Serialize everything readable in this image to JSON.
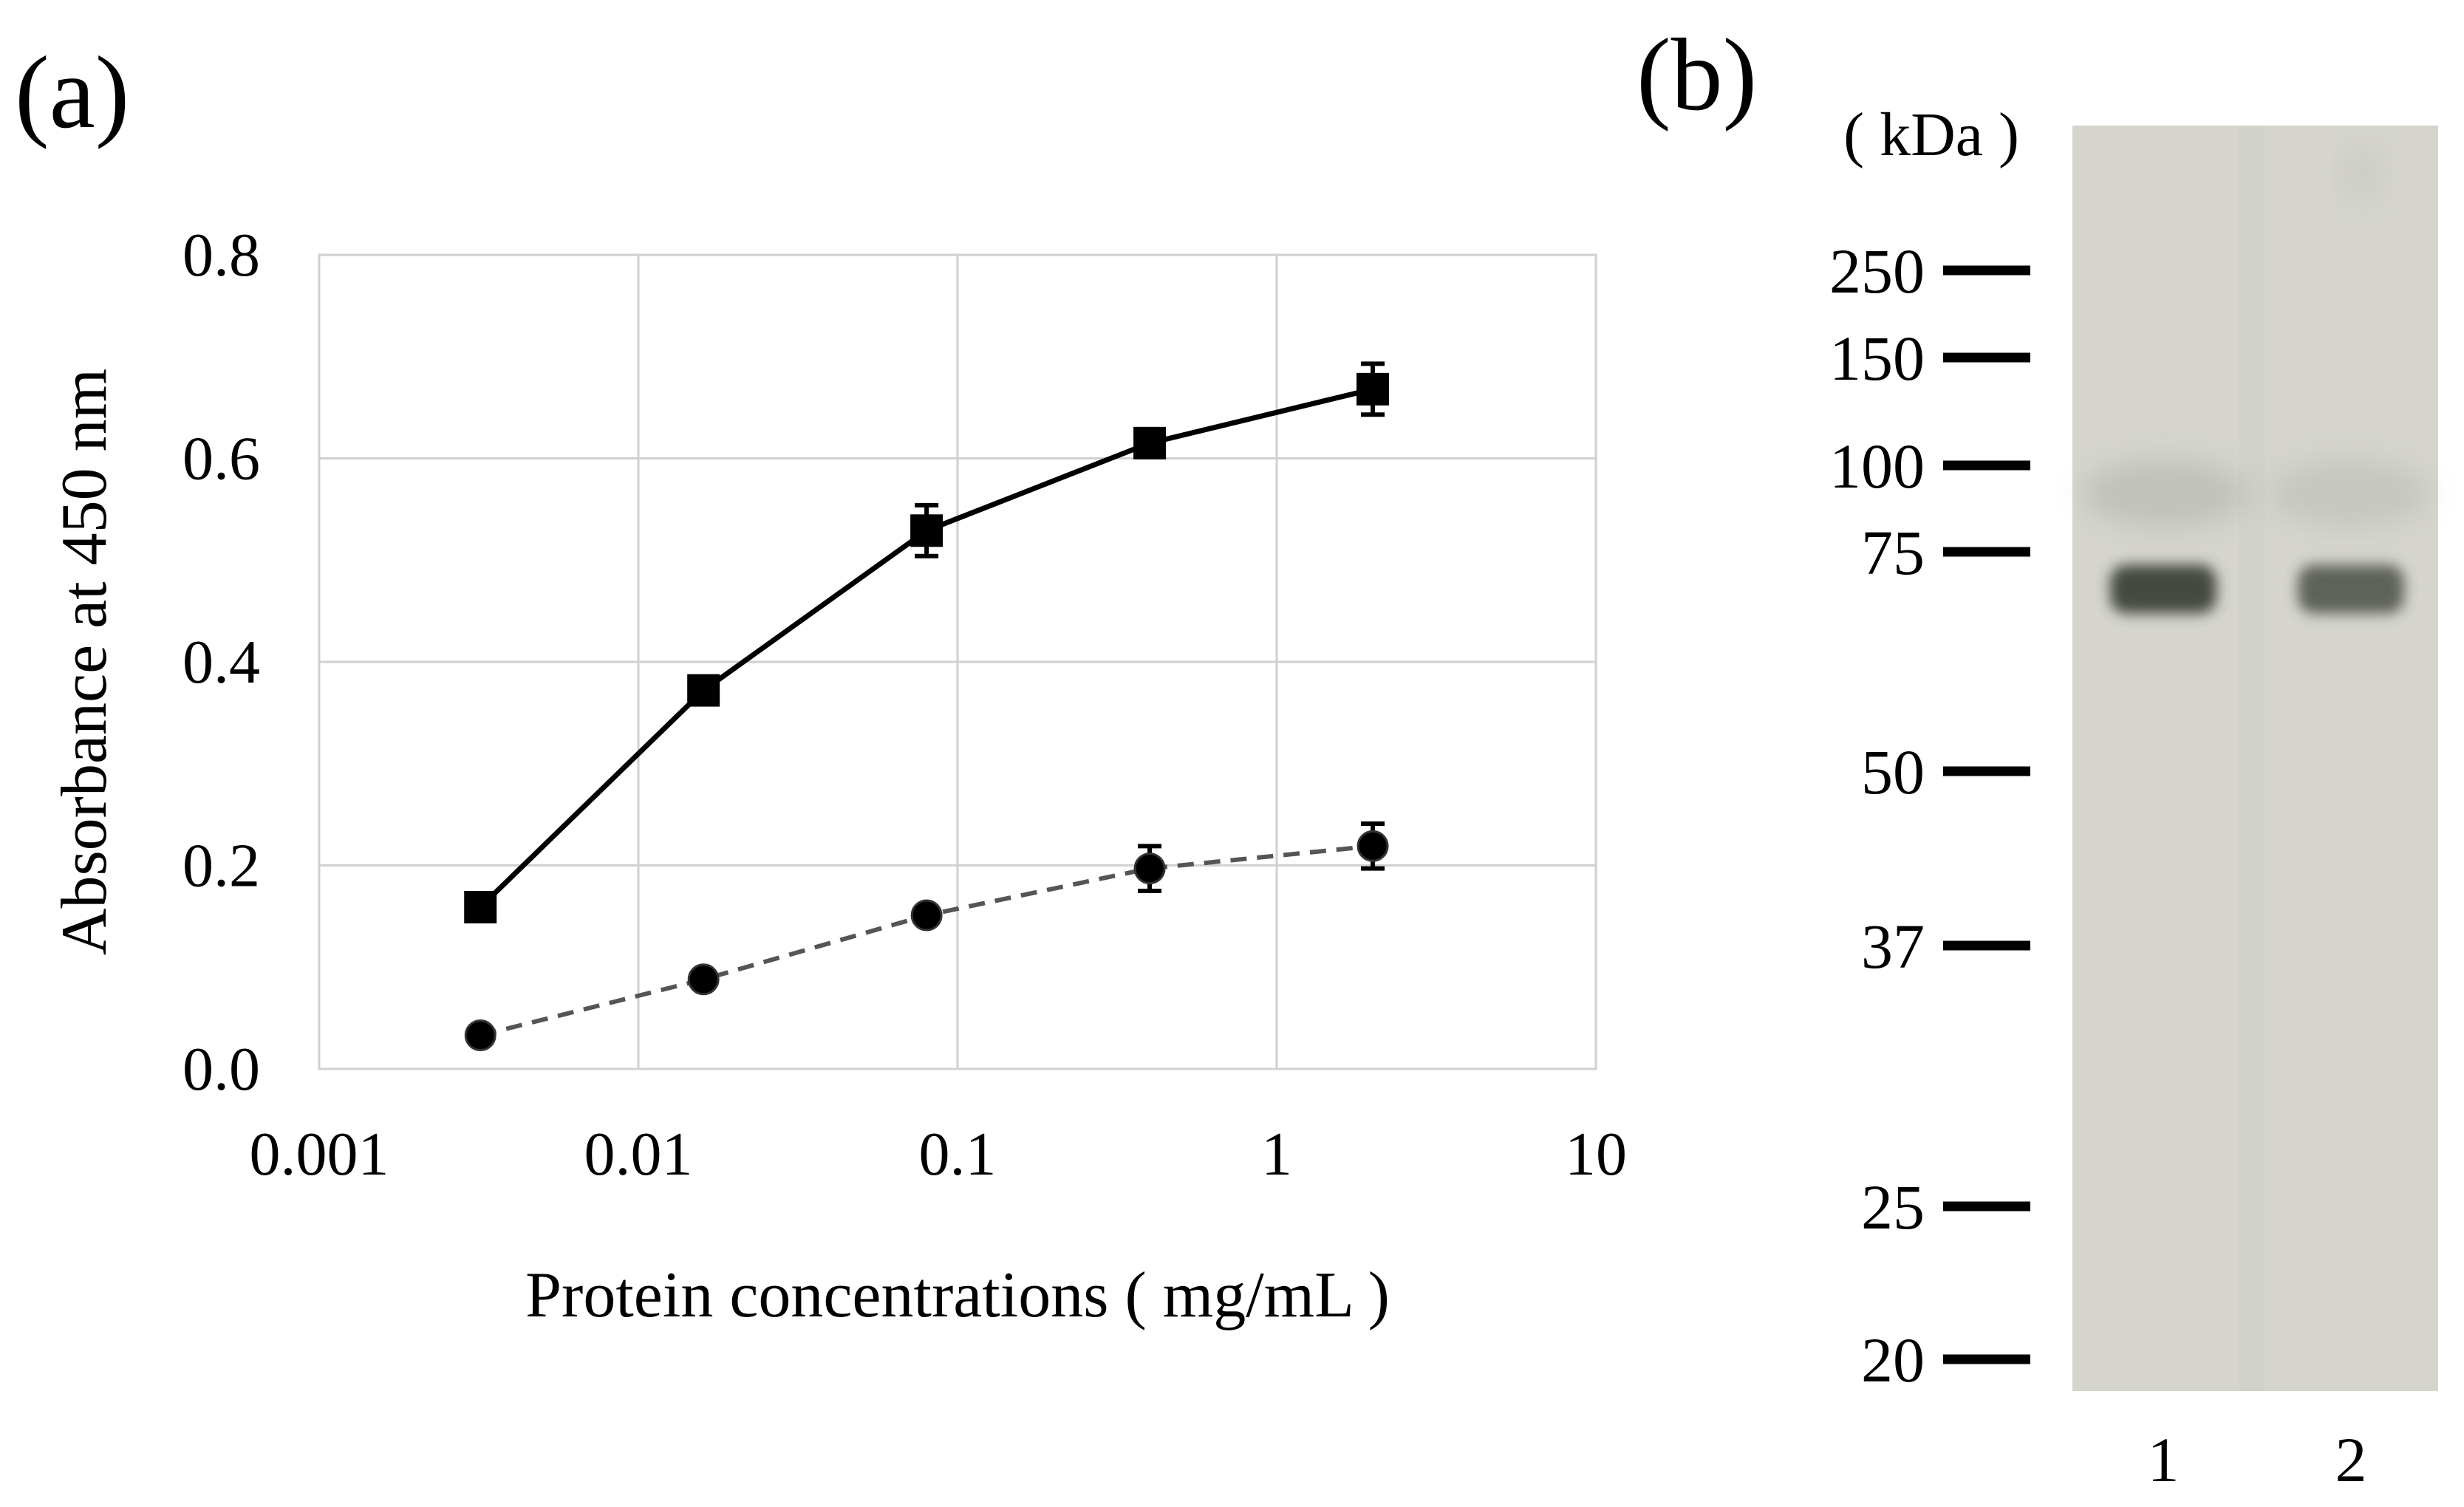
{
  "panels": {
    "a_label": "(a)",
    "b_label": "(b)"
  },
  "chart_data": {
    "type": "line",
    "xscale": "log",
    "x": [
      0.0032,
      0.016,
      0.08,
      0.4,
      2.0
    ],
    "xlim": [
      0.001,
      10
    ],
    "ylim": [
      0.0,
      0.8
    ],
    "xticks": [
      "0.001",
      "0.01",
      "0.1",
      "1",
      "10"
    ],
    "xtick_values": [
      0.001,
      0.01,
      0.1,
      1,
      10
    ],
    "yticks": [
      "0.0",
      "0.2",
      "0.4",
      "0.6",
      "0.8"
    ],
    "ytick_values": [
      0.0,
      0.2,
      0.4,
      0.6,
      0.8
    ],
    "xlabel": "Protein concentrations ( mg/mL )",
    "ylabel": "Absorbance at 450 nm",
    "grid": true,
    "series": [
      {
        "name": "square series",
        "marker": "square",
        "line": "solid",
        "color": "#000000",
        "values": [
          0.159,
          0.372,
          0.529,
          0.615,
          0.668
        ],
        "errors": [
          0.006,
          0.007,
          0.025,
          0.008,
          0.025
        ]
      },
      {
        "name": "circle series",
        "marker": "circle",
        "line": "dashed",
        "color": "#000000",
        "line_color": "#555555",
        "values": [
          0.033,
          0.088,
          0.151,
          0.197,
          0.219
        ],
        "errors": [
          0.004,
          0.004,
          0.006,
          0.022,
          0.022
        ]
      }
    ]
  },
  "gel": {
    "unit_label": "( kDa )",
    "markers": [
      {
        "label": "250",
        "kda": 250
      },
      {
        "label": "150",
        "kda": 150
      },
      {
        "label": "100",
        "kda": 100
      },
      {
        "label": "75",
        "kda": 75
      },
      {
        "label": "50",
        "kda": 50
      },
      {
        "label": "37",
        "kda": 37
      },
      {
        "label": "25",
        "kda": 25
      },
      {
        "label": "20",
        "kda": 20
      }
    ],
    "lanes": [
      "1",
      "2"
    ],
    "band_kda": 70,
    "background_color": "#d5d5ce",
    "band_color": "#3e423a"
  }
}
